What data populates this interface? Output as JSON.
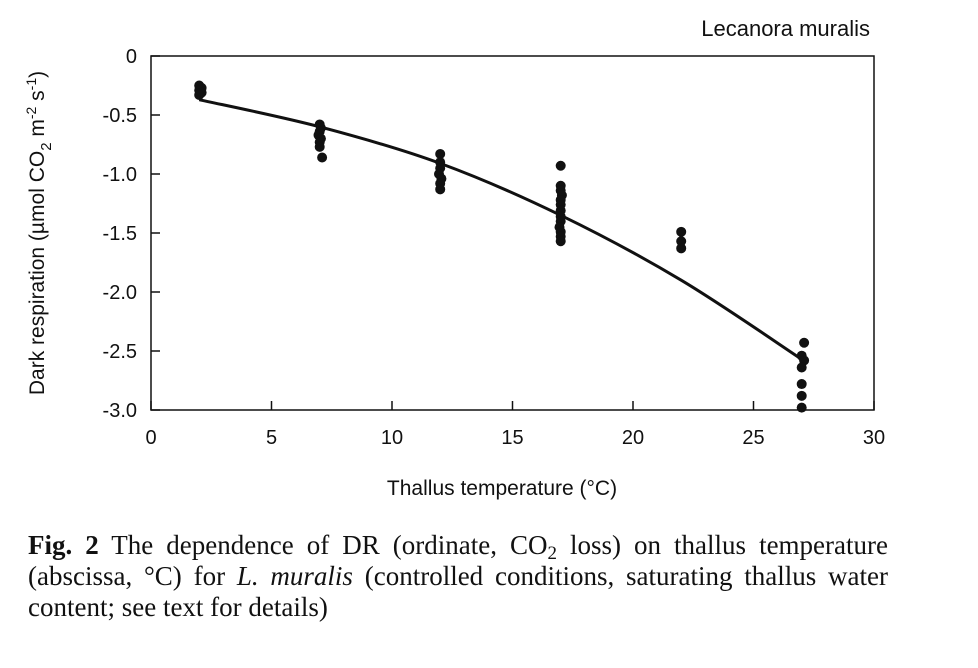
{
  "chart_data": {
    "type": "scatter",
    "title": "Lecanora muralis",
    "xlabel": "Thallus temperature (°C)",
    "ylabel": {
      "part1": "Dark respiration (µmol CO",
      "sub1": "2",
      "part2": " m",
      "sup1": "-2",
      "part3": " s",
      "sup2": "-1",
      "part4": ")"
    },
    "xlim": [
      0,
      30
    ],
    "ylim": [
      -3.0,
      0
    ],
    "xticks": [
      0,
      5,
      10,
      15,
      20,
      25,
      30
    ],
    "xtick_labels": [
      "0",
      "5",
      "10",
      "15",
      "20",
      "25",
      "30"
    ],
    "yticks": [
      0,
      -0.5,
      -1.0,
      -1.5,
      -2.0,
      -2.5,
      -3.0
    ],
    "ytick_labels": [
      "0",
      "-0.5",
      "-1.0",
      "-1.5",
      "-2.0",
      "-2.5",
      "-3.0"
    ],
    "grid": false,
    "series": [
      {
        "kind": "points",
        "points": [
          [
            2,
            -0.25
          ],
          [
            2.1,
            -0.27
          ],
          [
            2,
            -0.29
          ],
          [
            2.1,
            -0.31
          ],
          [
            2,
            -0.33
          ],
          [
            7,
            -0.58
          ],
          [
            7.05,
            -0.61
          ],
          [
            7,
            -0.64
          ],
          [
            6.95,
            -0.67
          ],
          [
            7.05,
            -0.7
          ],
          [
            7,
            -0.73
          ],
          [
            7,
            -0.77
          ],
          [
            7.1,
            -0.86
          ],
          [
            12,
            -0.83
          ],
          [
            12,
            -0.9
          ],
          [
            12,
            -0.95
          ],
          [
            11.95,
            -1.0
          ],
          [
            12.05,
            -1.04
          ],
          [
            12,
            -1.08
          ],
          [
            12,
            -1.13
          ],
          [
            17,
            -0.93
          ],
          [
            17,
            -1.1
          ],
          [
            17,
            -1.14
          ],
          [
            17.05,
            -1.18
          ],
          [
            17,
            -1.22
          ],
          [
            17,
            -1.26
          ],
          [
            17,
            -1.31
          ],
          [
            17,
            -1.36
          ],
          [
            17,
            -1.4
          ],
          [
            16.95,
            -1.45
          ],
          [
            17,
            -1.49
          ],
          [
            17,
            -1.53
          ],
          [
            17,
            -1.57
          ],
          [
            22,
            -1.49
          ],
          [
            22,
            -1.57
          ],
          [
            22,
            -1.63
          ],
          [
            27.1,
            -2.43
          ],
          [
            27,
            -2.54
          ],
          [
            27.1,
            -2.58
          ],
          [
            27,
            -2.64
          ],
          [
            27,
            -2.78
          ],
          [
            27,
            -2.88
          ],
          [
            27,
            -2.98
          ]
        ]
      },
      {
        "kind": "fit",
        "points": [
          [
            2,
            -0.37
          ],
          [
            7,
            -0.6
          ],
          [
            12,
            -0.91
          ],
          [
            17,
            -1.35
          ],
          [
            22,
            -1.9
          ],
          [
            27,
            -2.57
          ]
        ]
      }
    ]
  },
  "caption": {
    "label": "Fig. 2",
    "text1": " The dependence of DR (ordinate, CO",
    "sub": "2",
    "text2": " loss) on thallus temperature (abscissa, °C) for ",
    "italic": "L. muralis",
    "text3": " (controlled conditions, saturating thallus water content; see text for details)"
  }
}
